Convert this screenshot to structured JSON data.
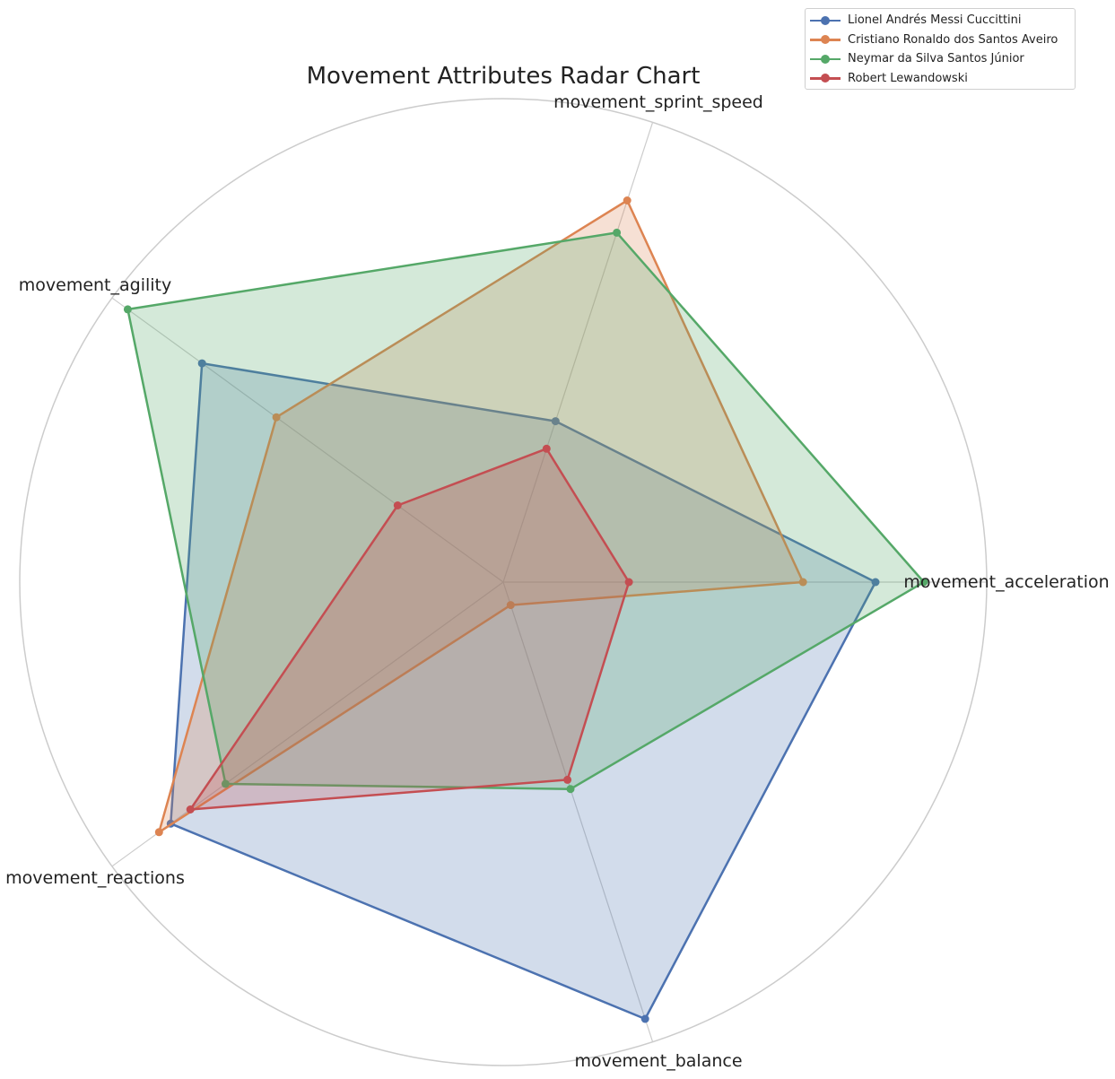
{
  "chart_data": {
    "type": "radar",
    "title": "Movement Attributes Radar Chart",
    "axes": [
      "movement_acceleration",
      "movement_sprint_speed",
      "movement_agility",
      "movement_reactions",
      "movement_balance"
    ],
    "rlim": [
      0,
      100
    ],
    "grid": true,
    "legend_position": "top-right",
    "series": [
      {
        "name": "Lionel Andrés Messi Cuccittini",
        "color": "#4c72b0",
        "values": [
          77,
          35,
          77,
          85,
          95
        ]
      },
      {
        "name": "Cristiano Ronaldo dos Santos Aveiro",
        "color": "#dd8452",
        "values": [
          62,
          83,
          58,
          88,
          5
        ]
      },
      {
        "name": "Neymar da Silva Santos Júnior",
        "color": "#55a868",
        "values": [
          87,
          76,
          96,
          71,
          45
        ]
      },
      {
        "name": "Robert Lewandowski",
        "color": "#c44e52",
        "values": [
          26,
          29,
          27,
          80,
          43
        ]
      }
    ]
  }
}
